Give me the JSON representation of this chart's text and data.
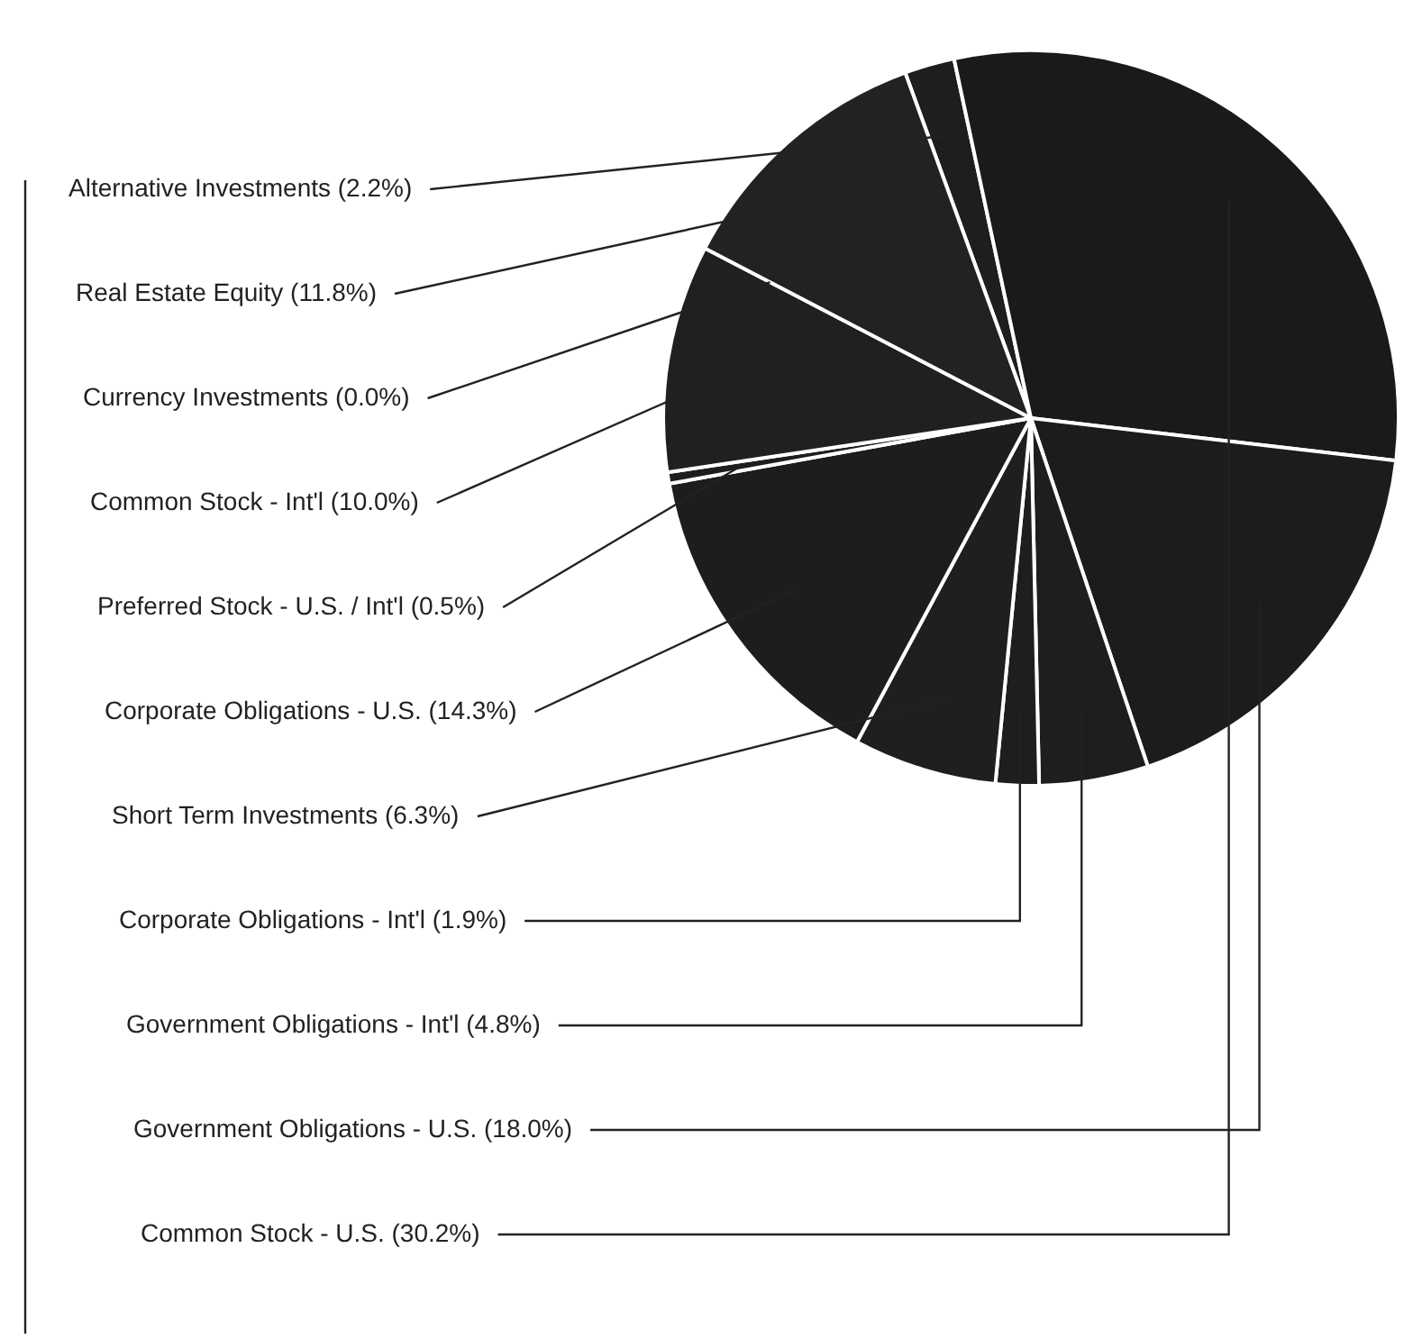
{
  "chart_data": {
    "type": "pie",
    "categories": [
      "Alternative Investments (2.2%)",
      "Common Stock - U.S. (30.2%)",
      "Government Obligations - U.S. (18.0%)",
      "Government Obligations - Int'l (4.8%)",
      "Corporate Obligations - Int'l (1.9%)",
      "Short Term Investments (6.3%)",
      "Corporate Obligations - U.S. (14.3%)",
      "Preferred Stock - U.S. / Int'l (0.5%)",
      "Common Stock - Int'l (10.0%)",
      "Currency Investments (0.0%)",
      "Real Estate Equity (11.8%)"
    ],
    "values": [
      2.2,
      30.2,
      18.0,
      4.8,
      1.9,
      6.3,
      14.3,
      0.5,
      10.0,
      0.0,
      11.8
    ],
    "colors": [
      "#1e1e1e",
      "#1a1a1a",
      "#1c1c1c",
      "#1e1e1e",
      "#1e1e1e",
      "#1f1f1f",
      "#1d1d1d",
      "#1e1e1e",
      "#202020",
      "#1e1e1e",
      "#222222"
    ],
    "legend": false
  }
}
